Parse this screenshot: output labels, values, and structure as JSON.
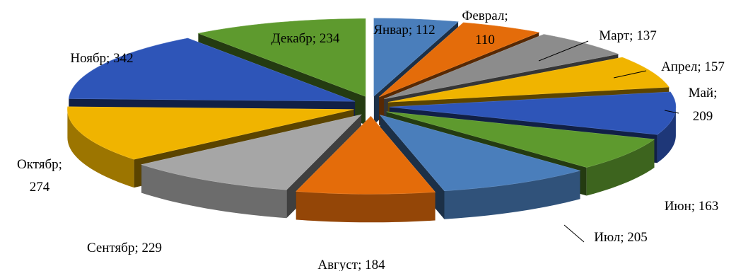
{
  "chart_data": {
    "type": "pie",
    "title": "",
    "slices": [
      {
        "label": "Январ",
        "value": 112,
        "color": "#4a7ebb"
      },
      {
        "label": "Феврал",
        "value": 110,
        "color": "#e46c0a"
      },
      {
        "label": "Март",
        "value": 137,
        "color": "#8c8c8c"
      },
      {
        "label": "Апрел",
        "value": 157,
        "color": "#f0b400"
      },
      {
        "label": "Май",
        "value": 209,
        "color": "#2e55b8"
      },
      {
        "label": "Июн",
        "value": 163,
        "color": "#5e9a2e"
      },
      {
        "label": "Июл",
        "value": 205,
        "color": "#4a7ebb"
      },
      {
        "label": "Август",
        "value": 184,
        "color": "#e46c0a"
      },
      {
        "label": "Сентябр",
        "value": 229,
        "color": "#a6a6a6"
      },
      {
        "label": "Октябр",
        "value": 274,
        "color": "#f0b400"
      },
      {
        "label": "Ноябр",
        "value": 342,
        "color": "#2e55b8"
      },
      {
        "label": "Декабр",
        "value": 234,
        "color": "#5e9a2e"
      }
    ],
    "labels": [
      [
        "Январ; 112"
      ],
      [
        "Феврал;",
        "110"
      ],
      [
        "Март; 137"
      ],
      [
        "Апрел; 157"
      ],
      [
        "Май;",
        "209"
      ],
      [
        "Июн; 163"
      ],
      [
        "Июл; 205"
      ],
      [
        "Август; 184"
      ],
      [
        "Сентябр; 229"
      ],
      [
        "Октябр;",
        "274"
      ],
      [
        "Ноябр; 342"
      ],
      [
        "Декабр; 234"
      ]
    ],
    "legend": "none",
    "style": "3d-exploded"
  }
}
